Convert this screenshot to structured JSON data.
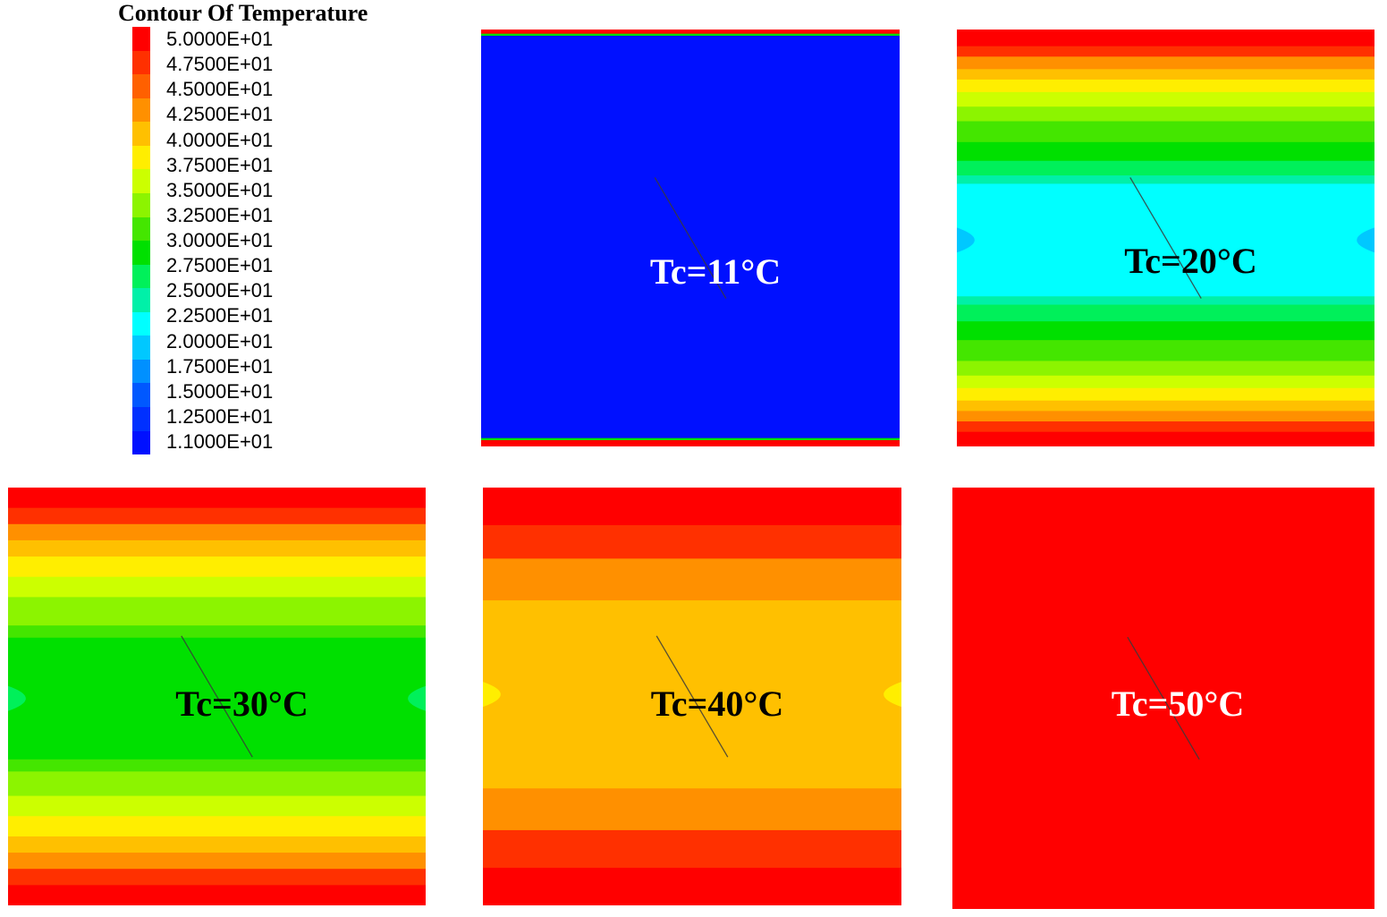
{
  "colors": {
    "legend_scale": [
      "#ff0000",
      "#ff3000",
      "#ff6000",
      "#ff9000",
      "#ffc000",
      "#ffee00",
      "#ccff00",
      "#8cf400",
      "#44e600",
      "#00e000",
      "#00f05a",
      "#00f0a8",
      "#00ffff",
      "#00c8ff",
      "#0090ff",
      "#0058ff",
      "#0030ff",
      "#0010ff"
    ],
    "panel_text_light": "#ffffff",
    "panel_text_dark": "#000000",
    "probe_line": "#3a3a3a"
  },
  "legend": {
    "title": "Contour Of Temperature",
    "labels": [
      "5.0000E+01",
      "4.7500E+01",
      "4.5000E+01",
      "4.2500E+01",
      "4.0000E+01",
      "3.7500E+01",
      "3.5000E+01",
      "3.2500E+01",
      "3.0000E+01",
      "2.7500E+01",
      "2.5000E+01",
      "2.2500E+01",
      "2.0000E+01",
      "1.7500E+01",
      "1.5000E+01",
      "1.2500E+01",
      "1.1000E+01"
    ]
  },
  "panels": [
    {
      "label": "Tc=11°C",
      "text_color": "#ffffff",
      "core_color": "#0010ff",
      "bands": [
        {
          "frac": 0.01,
          "color": "#ff0000"
        },
        {
          "frac": 0.005,
          "color": "#00e000"
        },
        {
          "frac": 0.965,
          "color": "#0010ff"
        },
        {
          "frac": 0.005,
          "color": "#00e000"
        },
        {
          "frac": 0.015,
          "color": "#ff0000"
        }
      ]
    },
    {
      "label": "Tc=20°C",
      "text_color": "#000000",
      "core_color": "#00ffff",
      "bulge_color": "#00c8ff",
      "bands": [
        {
          "frac": 0.04,
          "color": "#ff0000"
        },
        {
          "frac": 0.025,
          "color": "#ff3000"
        },
        {
          "frac": 0.03,
          "color": "#ff9000"
        },
        {
          "frac": 0.025,
          "color": "#ffc000"
        },
        {
          "frac": 0.03,
          "color": "#ffee00"
        },
        {
          "frac": 0.035,
          "color": "#ccff00"
        },
        {
          "frac": 0.035,
          "color": "#8cf400"
        },
        {
          "frac": 0.05,
          "color": "#44e600"
        },
        {
          "frac": 0.045,
          "color": "#00e000"
        },
        {
          "frac": 0.035,
          "color": "#00f05a"
        },
        {
          "frac": 0.02,
          "color": "#00f0a8"
        },
        {
          "frac": 0.27,
          "color": "#00ffff"
        },
        {
          "frac": 0.02,
          "color": "#00f0a8"
        },
        {
          "frac": 0.04,
          "color": "#00f05a"
        },
        {
          "frac": 0.045,
          "color": "#00e000"
        },
        {
          "frac": 0.05,
          "color": "#44e600"
        },
        {
          "frac": 0.035,
          "color": "#8cf400"
        },
        {
          "frac": 0.03,
          "color": "#ccff00"
        },
        {
          "frac": 0.03,
          "color": "#ffee00"
        },
        {
          "frac": 0.025,
          "color": "#ffc000"
        },
        {
          "frac": 0.025,
          "color": "#ff9000"
        },
        {
          "frac": 0.025,
          "color": "#ff3000"
        },
        {
          "frac": 0.035,
          "color": "#ff0000"
        }
      ]
    },
    {
      "label": "Tc=30°C",
      "text_color": "#000000",
      "core_color": "#00e000",
      "bulge_color": "#00f05a",
      "bands": [
        {
          "frac": 0.05,
          "color": "#ff0000"
        },
        {
          "frac": 0.04,
          "color": "#ff3000"
        },
        {
          "frac": 0.04,
          "color": "#ff9000"
        },
        {
          "frac": 0.04,
          "color": "#ffc000"
        },
        {
          "frac": 0.05,
          "color": "#ffee00"
        },
        {
          "frac": 0.05,
          "color": "#ccff00"
        },
        {
          "frac": 0.07,
          "color": "#8cf400"
        },
        {
          "frac": 0.03,
          "color": "#44e600"
        },
        {
          "frac": 0.3,
          "color": "#00e000"
        },
        {
          "frac": 0.03,
          "color": "#44e600"
        },
        {
          "frac": 0.06,
          "color": "#8cf400"
        },
        {
          "frac": 0.05,
          "color": "#ccff00"
        },
        {
          "frac": 0.05,
          "color": "#ffee00"
        },
        {
          "frac": 0.04,
          "color": "#ffc000"
        },
        {
          "frac": 0.04,
          "color": "#ff9000"
        },
        {
          "frac": 0.04,
          "color": "#ff3000"
        },
        {
          "frac": 0.05,
          "color": "#ff0000"
        }
      ]
    },
    {
      "label": "Tc=40°C",
      "text_color": "#000000",
      "core_color": "#ffc000",
      "bulge_color": "#ffee00",
      "bands": [
        {
          "frac": 0.09,
          "color": "#ff0000"
        },
        {
          "frac": 0.08,
          "color": "#ff3000"
        },
        {
          "frac": 0.1,
          "color": "#ff9000"
        },
        {
          "frac": 0.45,
          "color": "#ffc000"
        },
        {
          "frac": 0.1,
          "color": "#ff9000"
        },
        {
          "frac": 0.09,
          "color": "#ff3000"
        },
        {
          "frac": 0.09,
          "color": "#ff0000"
        }
      ]
    },
    {
      "label": "Tc=50°C",
      "text_color": "#ffffff",
      "core_color": "#ff0000",
      "bands": [
        {
          "frac": 1.0,
          "color": "#ff0000"
        }
      ]
    }
  ]
}
